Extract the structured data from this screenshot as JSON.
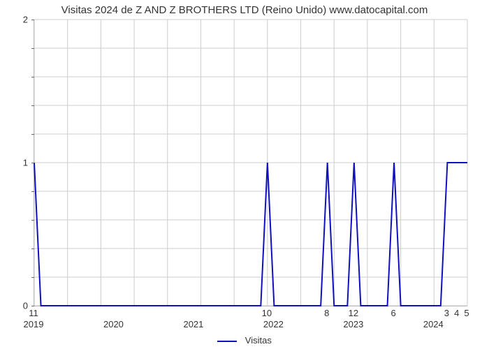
{
  "chart": {
    "type": "line",
    "title": "Visitas 2024 de Z AND Z BROTHERS LTD (Reino Unido) www.datocapital.com",
    "title_fontsize": 15,
    "background_color": "#ffffff",
    "grid_color": "#cccccc",
    "axis_color": "#aaaaaa",
    "text_color": "#333333",
    "line_color": "#1010c0",
    "line_width": 2,
    "font_family": "Arial",
    "label_fontsize": 13,
    "x": {
      "range": [
        0,
        65
      ],
      "major_gridlines": [
        0,
        5,
        10,
        15,
        20,
        25,
        30,
        35,
        40,
        45,
        50,
        55,
        60,
        65
      ],
      "year_ticks": [
        {
          "pos": 0,
          "label": "2019"
        },
        {
          "pos": 12,
          "label": "2020"
        },
        {
          "pos": 24,
          "label": "2021"
        },
        {
          "pos": 36,
          "label": "2022"
        },
        {
          "pos": 48,
          "label": "2023"
        },
        {
          "pos": 60,
          "label": "2024"
        }
      ],
      "value_ticks": [
        {
          "pos": 0,
          "label": "11"
        },
        {
          "pos": 35,
          "label": "10"
        },
        {
          "pos": 44,
          "label": "8"
        },
        {
          "pos": 48,
          "label": "12"
        },
        {
          "pos": 54,
          "label": "6"
        },
        {
          "pos": 62,
          "label": "3"
        },
        {
          "pos": 63.5,
          "label": "4"
        },
        {
          "pos": 65,
          "label": "5"
        }
      ]
    },
    "y": {
      "range": [
        0,
        2
      ],
      "grid_ticks": [
        0.0,
        0.2,
        0.4,
        0.6,
        0.8,
        1.0,
        1.2,
        1.4,
        1.6,
        1.8,
        2.0
      ],
      "labeled_ticks": [
        {
          "val": 0,
          "label": "0"
        },
        {
          "val": 1,
          "label": "1"
        },
        {
          "val": 2,
          "label": "2"
        }
      ]
    },
    "series": {
      "name": "Visitas",
      "points": [
        [
          0,
          1
        ],
        [
          1,
          0
        ],
        [
          34,
          0
        ],
        [
          35,
          1
        ],
        [
          36,
          0
        ],
        [
          43,
          0
        ],
        [
          44,
          1
        ],
        [
          45,
          0
        ],
        [
          47,
          0
        ],
        [
          48,
          1
        ],
        [
          49,
          0
        ],
        [
          53,
          0
        ],
        [
          54,
          1
        ],
        [
          55,
          0
        ],
        [
          61,
          0
        ],
        [
          62,
          1
        ],
        [
          65,
          1
        ]
      ]
    },
    "legend": {
      "label": "Visitas",
      "position": "bottom-center"
    }
  }
}
